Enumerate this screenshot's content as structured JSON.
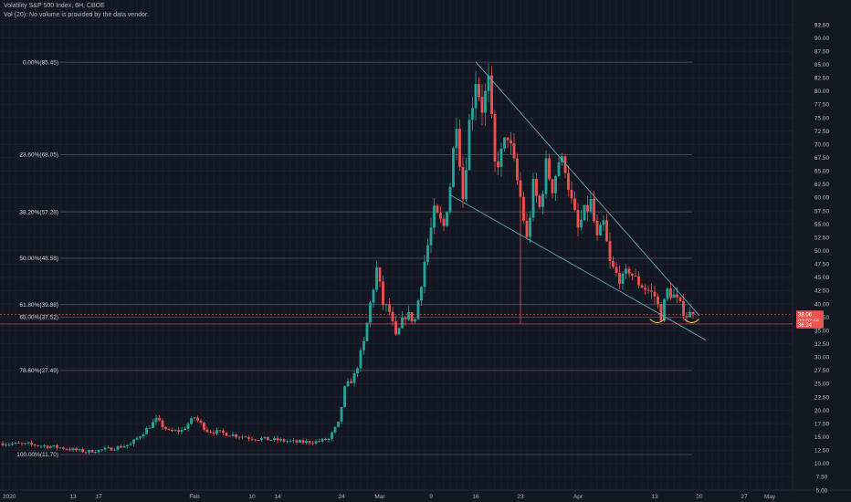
{
  "header": {
    "title": "Volatility S&P 500 Index, 6H, CBOE",
    "volume_note": "Vol (20): No volume is provided by the data vendor."
  },
  "colors": {
    "background": "#131722",
    "grid": "#1c2130",
    "up_candle": "#26a69a",
    "down_candle": "#ef5350",
    "fib_line": "#434651",
    "trendline": "#5ea7b3",
    "arc": "#e5c74b",
    "price_tag": "#ef5350",
    "price_line": "#ef5350"
  },
  "chart_data": {
    "type": "candlestick",
    "y_axis": {
      "min": 5.0,
      "max": 92.5,
      "step": 2.5,
      "position": "right",
      "ticks": [
        "5.00",
        "7.50",
        "10.00",
        "12.50",
        "15.00",
        "17.50",
        "20.00",
        "22.50",
        "25.00",
        "27.50",
        "30.00",
        "32.50",
        "35.00",
        "37.50",
        "40.00",
        "42.50",
        "45.00",
        "47.50",
        "50.00",
        "52.50",
        "55.00",
        "57.50",
        "60.00",
        "62.50",
        "65.00",
        "67.50",
        "70.00",
        "72.50",
        "75.00",
        "77.50",
        "80.00",
        "82.50",
        "85.00",
        "87.50",
        "90.00",
        "92.50"
      ]
    },
    "x_axis": {
      "ticks": [
        {
          "label": "2020",
          "day": 0
        },
        {
          "label": "13",
          "day": 11
        },
        {
          "label": "17",
          "day": 15
        },
        {
          "label": "Feb",
          "day": 30
        },
        {
          "label": "10",
          "day": 39
        },
        {
          "label": "14",
          "day": 43
        },
        {
          "label": "24",
          "day": 53
        },
        {
          "label": "Mar",
          "day": 59
        },
        {
          "label": "9",
          "day": 67
        },
        {
          "label": "16",
          "day": 74
        },
        {
          "label": "23",
          "day": 81
        },
        {
          "label": "Apr",
          "day": 90
        },
        {
          "label": "13",
          "day": 102
        },
        {
          "label": "20",
          "day": 109
        },
        {
          "label": "27",
          "day": 116
        },
        {
          "label": "May",
          "day": 120
        }
      ]
    },
    "fibonacci": [
      {
        "label": "0.00%(85.45)",
        "value": 85.45
      },
      {
        "label": "23.60%(68.05)",
        "value": 68.05
      },
      {
        "label": "38.20%(57.28)",
        "value": 57.28
      },
      {
        "label": "50.00%(48.58)",
        "value": 48.58
      },
      {
        "label": "61.80%(39.88)",
        "value": 39.88
      },
      {
        "label": "65.00%(37.52)",
        "value": 37.52
      },
      {
        "label": "78.60%(27.49)",
        "value": 27.49
      },
      {
        "label": "100.00%(11.70)",
        "value": 11.7
      }
    ],
    "price_tags": [
      {
        "label": "38.06",
        "value": 38.06
      },
      {
        "label": "02:07:56",
        "value": 37.1
      },
      {
        "label": "36.24",
        "value": 36.24
      }
    ],
    "trendlines": [
      {
        "from": [
          74,
          85.5
        ],
        "to": [
          109,
          37.8
        ]
      },
      {
        "from": [
          70,
          60.5
        ],
        "to": [
          110,
          33.2
        ]
      }
    ],
    "arcs": [
      {
        "day": 102.4,
        "value": 37.0
      },
      {
        "day": 107.8,
        "value": 37.0
      }
    ],
    "keypoints": [
      [
        0,
        13.8
      ],
      [
        5,
        13.5
      ],
      [
        9,
        13.0
      ],
      [
        13,
        12.2
      ],
      [
        17,
        12.8
      ],
      [
        20,
        13.6
      ],
      [
        24,
        18.2
      ],
      [
        26,
        16.0
      ],
      [
        28,
        16.2
      ],
      [
        30,
        18.7
      ],
      [
        32,
        16.2
      ],
      [
        35,
        15.6
      ],
      [
        39,
        14.8
      ],
      [
        43,
        14.4
      ],
      [
        46,
        14.0
      ],
      [
        49,
        14.1
      ],
      [
        51,
        14.6
      ],
      [
        52.5,
        17.5
      ],
      [
        53.5,
        24.0
      ],
      [
        55,
        26.5
      ],
      [
        56.5,
        32.5
      ],
      [
        57.5,
        40.0
      ],
      [
        58.5,
        46.5
      ],
      [
        59.5,
        40.0
      ],
      [
        60.5,
        38.5
      ],
      [
        61.5,
        33.5
      ],
      [
        63,
        38.0
      ],
      [
        64.5,
        37.0
      ],
      [
        66,
        48.0
      ],
      [
        67.5,
        57.0
      ],
      [
        69,
        54.5
      ],
      [
        70,
        62.5
      ],
      [
        71,
        75.0
      ],
      [
        72,
        60.0
      ],
      [
        73,
        74.0
      ],
      [
        74,
        82.5
      ],
      [
        75,
        77.0
      ],
      [
        76,
        81.5
      ],
      [
        77,
        66.0
      ],
      [
        78,
        68.0
      ],
      [
        79,
        72.0
      ],
      [
        80,
        66.0
      ],
      [
        81,
        60.0
      ],
      [
        82,
        52.0
      ],
      [
        83,
        62.0
      ],
      [
        84,
        58.0
      ],
      [
        85,
        66.0
      ],
      [
        86,
        62.0
      ],
      [
        87,
        67.0
      ],
      [
        88,
        66.0
      ],
      [
        89,
        59.0
      ],
      [
        90,
        54.0
      ],
      [
        91,
        57.0
      ],
      [
        92,
        59.0
      ],
      [
        93,
        52.0
      ],
      [
        94,
        55.0
      ],
      [
        95,
        47.5
      ],
      [
        96,
        45.5
      ],
      [
        97,
        44.5
      ],
      [
        98,
        46.5
      ],
      [
        99,
        44.5
      ],
      [
        100,
        43.5
      ],
      [
        101,
        42.5
      ],
      [
        102,
        41.5
      ],
      [
        103,
        37.8
      ],
      [
        104,
        42.5
      ],
      [
        105,
        41.5
      ],
      [
        106,
        39.5
      ],
      [
        107,
        38.0
      ],
      [
        108,
        38.06
      ]
    ]
  }
}
